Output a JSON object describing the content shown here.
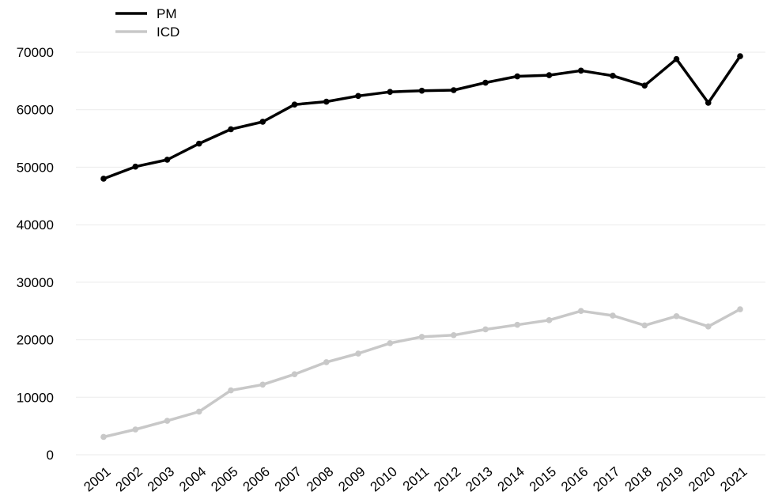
{
  "chart_data": {
    "type": "line",
    "title": "",
    "xlabel": "",
    "ylabel": "",
    "categories": [
      "2001",
      "2002",
      "2003",
      "2004",
      "2005",
      "2006",
      "2007",
      "2008",
      "2009",
      "2010",
      "2011",
      "2012",
      "2013",
      "2014",
      "2015",
      "2016",
      "2017",
      "2018",
      "2019",
      "2020",
      "2021"
    ],
    "series": [
      {
        "name": "PM",
        "color": "#000000",
        "values": [
          48000,
          50100,
          51300,
          54100,
          56600,
          57900,
          60900,
          61400,
          62400,
          63100,
          63300,
          63400,
          64700,
          65800,
          66000,
          66800,
          65900,
          64200,
          68800,
          61200,
          69300
        ]
      },
      {
        "name": "ICD",
        "color": "#c8c8c8",
        "values": [
          3100,
          4400,
          5900,
          7500,
          11200,
          12200,
          14000,
          16100,
          17600,
          19400,
          20500,
          20800,
          21800,
          22600,
          23400,
          25000,
          24200,
          22500,
          24100,
          22300,
          25300
        ]
      }
    ],
    "ylim": [
      0,
      70000
    ],
    "yticks": [
      "0",
      "10000",
      "20000",
      "30000",
      "40000",
      "50000",
      "60000",
      "70000"
    ],
    "grid": "horizontal",
    "legend": "top-left"
  }
}
